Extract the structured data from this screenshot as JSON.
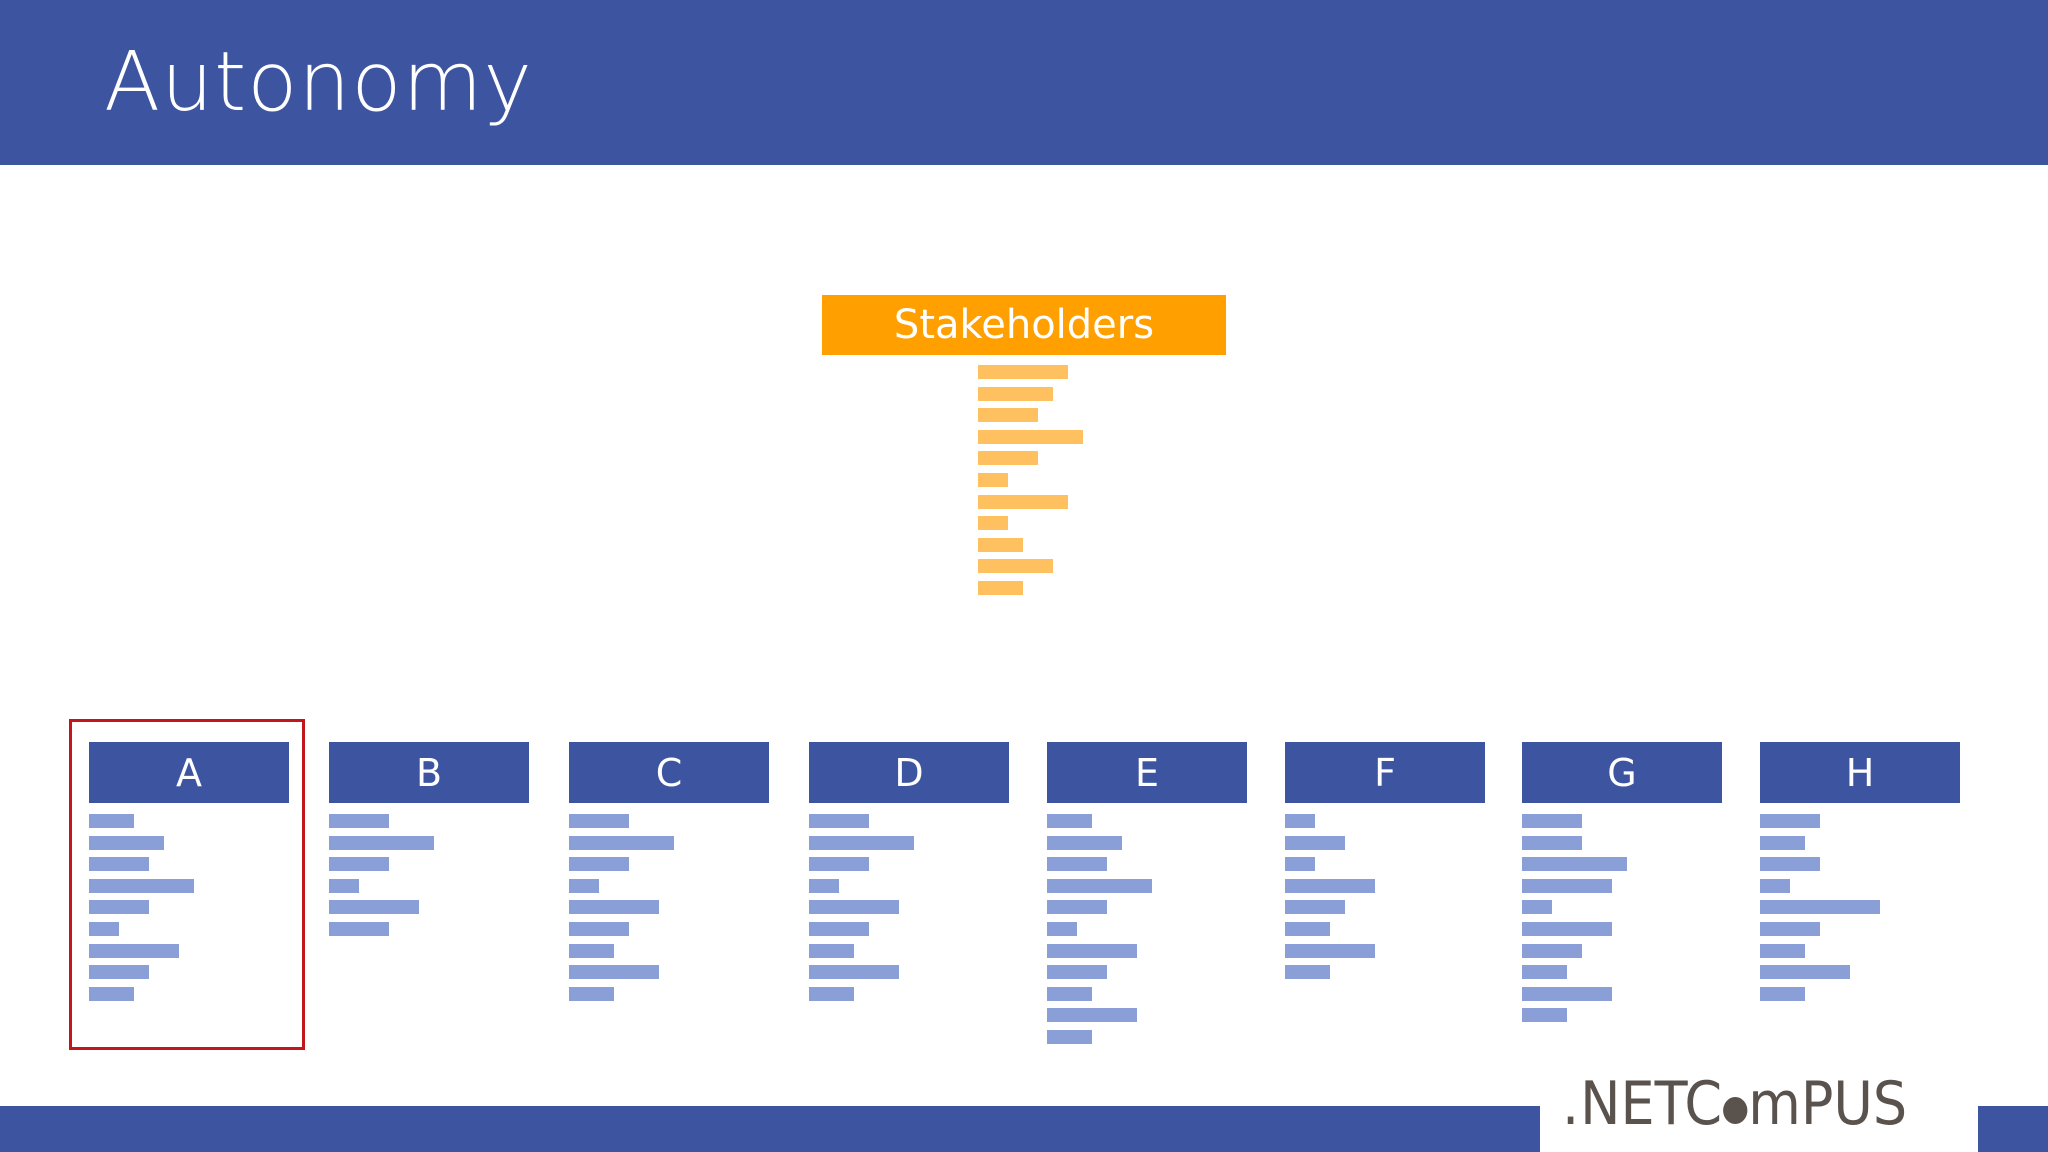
{
  "slide": {
    "title": "Autonomy"
  },
  "stakeholders": {
    "label": "Stakeholders",
    "lines": [
      0.6,
      0.5,
      0.4,
      0.7,
      0.4,
      0.2,
      0.6,
      0.2,
      0.3,
      0.5,
      0.3
    ]
  },
  "teams": [
    {
      "label": "A",
      "lines": [
        0.3,
        0.5,
        0.4,
        0.7,
        0.4,
        0.2,
        0.6,
        0.4,
        0.3
      ]
    },
    {
      "label": "B",
      "lines": [
        0.4,
        0.7,
        0.4,
        0.2,
        0.6,
        0.4
      ]
    },
    {
      "label": "C",
      "lines": [
        0.4,
        0.7,
        0.4,
        0.2,
        0.6,
        0.4,
        0.3,
        0.6,
        0.3
      ]
    },
    {
      "label": "D",
      "lines": [
        0.4,
        0.7,
        0.4,
        0.2,
        0.6,
        0.4,
        0.3,
        0.6,
        0.3
      ]
    },
    {
      "label": "E",
      "lines": [
        0.3,
        0.5,
        0.4,
        0.7,
        0.4,
        0.2,
        0.6,
        0.4,
        0.3,
        0.6,
        0.3
      ]
    },
    {
      "label": "F",
      "lines": [
        0.2,
        0.4,
        0.2,
        0.6,
        0.4,
        0.3,
        0.6,
        0.3
      ]
    },
    {
      "label": "G",
      "lines": [
        0.4,
        0.4,
        0.7,
        0.6,
        0.2,
        0.6,
        0.4,
        0.3,
        0.6,
        0.3
      ]
    },
    {
      "label": "H",
      "lines": [
        0.4,
        0.3,
        0.4,
        0.2,
        0.8,
        0.4,
        0.3,
        0.6,
        0.3
      ]
    }
  ],
  "selected_team": "A",
  "logo": {
    "text": ".NETCampus"
  },
  "colors": {
    "brand_blue": "#3d55a0",
    "line_blue": "#8a9fd8",
    "stakeholder_orange": "#ff9f00",
    "stakeholder_line": "#ffc160",
    "selection_red": "#c3161c"
  }
}
